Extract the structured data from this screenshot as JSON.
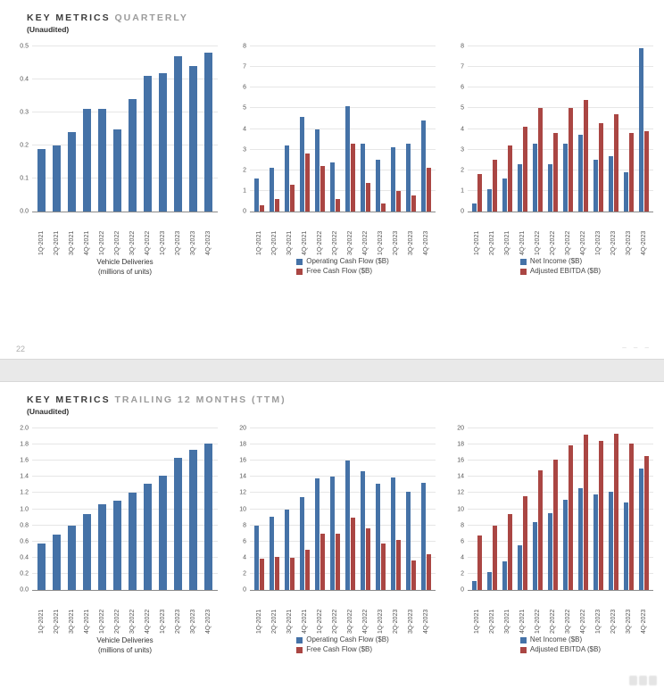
{
  "page": {
    "page_number": "22",
    "corner_marks": "– – –",
    "colors": {
      "blue": "#4572A7",
      "red": "#AA4643"
    }
  },
  "sections": [
    {
      "title_main": "KEY METRICS",
      "title_sub": "QUARTERLY",
      "unaudited": "(Unaudited)"
    },
    {
      "title_main": "KEY METRICS",
      "title_sub": "TRAILING 12 MONTHS (TTM)",
      "unaudited": "(Unaudited)"
    }
  ],
  "chart_data": [
    {
      "type": "bar",
      "categories": [
        "1Q-2021",
        "2Q-2021",
        "3Q-2021",
        "4Q-2021",
        "1Q-2022",
        "2Q-2022",
        "3Q-2022",
        "4Q-2022",
        "1Q-2023",
        "2Q-2023",
        "3Q-2023",
        "4Q-2023"
      ],
      "series": [
        {
          "name": "Vehicle Deliveries",
          "color": "blue",
          "values": [
            0.19,
            0.2,
            0.24,
            0.31,
            0.31,
            0.25,
            0.34,
            0.41,
            0.42,
            0.47,
            0.44,
            0.48
          ]
        }
      ],
      "ylim": [
        0,
        0.5
      ],
      "yticks": [
        "0.0",
        "0.1",
        "0.2",
        "0.3",
        "0.4",
        "0.5"
      ],
      "xtitle_lines": [
        "Vehicle Deliveries",
        "(millions of units)"
      ]
    },
    {
      "type": "bar",
      "categories": [
        "1Q-2021",
        "2Q-2021",
        "3Q-2021",
        "4Q-2021",
        "1Q-2022",
        "2Q-2022",
        "3Q-2022",
        "4Q-2022",
        "1Q-2023",
        "2Q-2023",
        "3Q-2023",
        "4Q-2023"
      ],
      "series": [
        {
          "name": "Operating Cash Flow ($B)",
          "color": "blue",
          "values": [
            1.6,
            2.1,
            3.2,
            4.6,
            4.0,
            2.4,
            5.1,
            3.3,
            2.5,
            3.1,
            3.3,
            4.4
          ]
        },
        {
          "name": "Free Cash Flow ($B)",
          "color": "red",
          "values": [
            0.3,
            0.6,
            1.3,
            2.8,
            2.2,
            0.6,
            3.3,
            1.4,
            0.4,
            1.0,
            0.8,
            2.1
          ]
        }
      ],
      "ylim": [
        0,
        8
      ],
      "yticks": [
        "0",
        "1",
        "2",
        "3",
        "4",
        "5",
        "6",
        "7",
        "8"
      ],
      "legend": [
        {
          "label": "Operating Cash Flow ($B)",
          "color": "blue"
        },
        {
          "label": "Free Cash Flow ($B)",
          "color": "red"
        }
      ]
    },
    {
      "type": "bar",
      "categories": [
        "1Q-2021",
        "2Q-2021",
        "3Q-2021",
        "4Q-2021",
        "1Q-2022",
        "2Q-2022",
        "3Q-2022",
        "4Q-2022",
        "1Q-2023",
        "2Q-2023",
        "3Q-2023",
        "4Q-2023"
      ],
      "series": [
        {
          "name": "Net Income ($B)",
          "color": "blue",
          "values": [
            0.4,
            1.1,
            1.6,
            2.3,
            3.3,
            2.3,
            3.3,
            3.7,
            2.5,
            2.7,
            1.9,
            7.9
          ]
        },
        {
          "name": "Adjusted EBITDA ($B)",
          "color": "red",
          "values": [
            1.8,
            2.5,
            3.2,
            4.1,
            5.0,
            3.8,
            5.0,
            5.4,
            4.3,
            4.7,
            3.8,
            3.9
          ]
        }
      ],
      "ylim": [
        0,
        8
      ],
      "yticks": [
        "0",
        "1",
        "2",
        "3",
        "4",
        "5",
        "6",
        "7",
        "8"
      ],
      "legend": [
        {
          "label": "Net Income ($B)",
          "color": "blue"
        },
        {
          "label": "Adjusted EBITDA ($B)",
          "color": "red"
        }
      ]
    },
    {
      "type": "bar",
      "categories": [
        "1Q-2021",
        "2Q-2021",
        "3Q-2021",
        "4Q-2021",
        "1Q-2022",
        "2Q-2022",
        "3Q-2022",
        "4Q-2022",
        "1Q-2023",
        "2Q-2023",
        "3Q-2023",
        "4Q-2023"
      ],
      "series": [
        {
          "name": "Vehicle Deliveries",
          "color": "blue",
          "values": [
            0.58,
            0.69,
            0.8,
            0.94,
            1.06,
            1.11,
            1.21,
            1.31,
            1.42,
            1.64,
            1.73,
            1.81
          ]
        }
      ],
      "ylim": [
        0,
        2.0
      ],
      "yticks": [
        "0.0",
        "0.2",
        "0.4",
        "0.6",
        "0.8",
        "1.0",
        "1.2",
        "1.4",
        "1.6",
        "1.8",
        "2.0"
      ],
      "xtitle_lines": [
        "Vehicle Deliveries",
        "(millions of units)"
      ]
    },
    {
      "type": "bar",
      "categories": [
        "1Q-2021",
        "2Q-2021",
        "3Q-2021",
        "4Q-2021",
        "1Q-2022",
        "2Q-2022",
        "3Q-2022",
        "4Q-2022",
        "1Q-2023",
        "2Q-2023",
        "3Q-2023",
        "4Q-2023"
      ],
      "series": [
        {
          "name": "Operating Cash Flow ($B)",
          "color": "blue",
          "values": [
            8.0,
            9.1,
            9.9,
            11.5,
            13.8,
            14.0,
            16.0,
            14.7,
            13.2,
            13.9,
            12.2,
            13.3
          ]
        },
        {
          "name": "Free Cash Flow ($B)",
          "color": "red",
          "values": [
            3.9,
            4.1,
            4.0,
            5.0,
            7.0,
            7.0,
            8.9,
            7.6,
            5.8,
            6.2,
            3.7,
            4.4
          ]
        }
      ],
      "ylim": [
        0,
        20
      ],
      "yticks": [
        "0",
        "2",
        "4",
        "6",
        "8",
        "10",
        "12",
        "14",
        "16",
        "18",
        "20"
      ],
      "legend": [
        {
          "label": "Operating Cash Flow ($B)",
          "color": "blue"
        },
        {
          "label": "Free Cash Flow ($B)",
          "color": "red"
        }
      ]
    },
    {
      "type": "bar",
      "categories": [
        "1Q-2021",
        "2Q-2021",
        "3Q-2021",
        "4Q-2021",
        "1Q-2022",
        "2Q-2022",
        "3Q-2022",
        "4Q-2022",
        "1Q-2023",
        "2Q-2023",
        "3Q-2023",
        "4Q-2023"
      ],
      "series": [
        {
          "name": "Net Income ($B)",
          "color": "blue",
          "values": [
            1.1,
            2.2,
            3.5,
            5.5,
            8.4,
            9.5,
            11.2,
            12.6,
            11.8,
            12.2,
            10.8,
            15.0
          ]
        },
        {
          "name": "Adjusted EBITDA ($B)",
          "color": "red",
          "values": [
            6.7,
            8.0,
            9.4,
            11.6,
            14.8,
            16.1,
            17.9,
            19.2,
            18.4,
            19.3,
            18.1,
            16.6
          ]
        }
      ],
      "ylim": [
        0,
        20
      ],
      "yticks": [
        "0",
        "2",
        "4",
        "6",
        "8",
        "10",
        "12",
        "14",
        "16",
        "18",
        "20"
      ],
      "legend": [
        {
          "label": "Net Income ($B)",
          "color": "blue"
        },
        {
          "label": "Adjusted EBITDA ($B)",
          "color": "red"
        }
      ]
    }
  ]
}
